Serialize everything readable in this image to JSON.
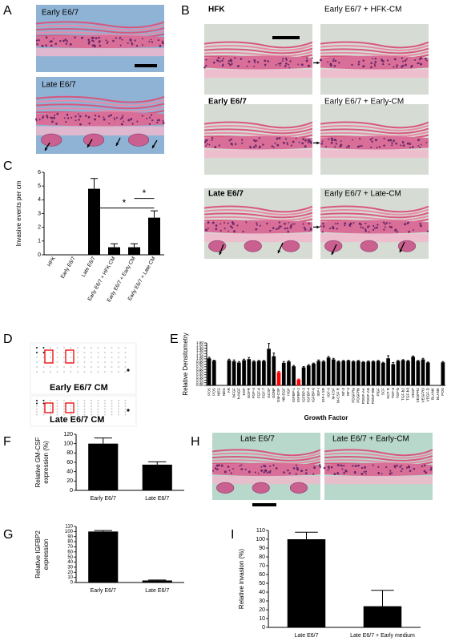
{
  "panels": [
    "A",
    "B",
    "C",
    "D",
    "E",
    "F",
    "G",
    "H",
    "I"
  ],
  "images": {
    "A": [
      "Early E6/7",
      "Late E6/7"
    ],
    "B": [
      "HFK",
      "Early E6/7 + HFK-CM",
      "Early E6/7",
      "Early E6/7 + Early-CM",
      "Late E6/7",
      "Early E6/7 + Late-CM"
    ],
    "H": [
      "Late E6/7",
      "Late E6/7 + Early-CM"
    ]
  },
  "blots": [
    "Early E6/7 CM",
    "Late E6/7 CM"
  ],
  "chart_data": [
    {
      "type": "bar",
      "y_label": "Invasive events per cm",
      "categories": [
        "HFK",
        "Early E6/7",
        "Late E6/7",
        "Early E6/7 + HFK CM",
        "Early E6/7 + Early CM",
        "Early E6/7 + Late CM"
      ],
      "values": [
        0,
        0,
        4.8,
        0.55,
        0.55,
        2.7
      ],
      "errors": [
        0,
        0,
        0.75,
        0.25,
        0.25,
        0.5
      ],
      "color": "#000000",
      "ylim": [
        0,
        6
      ],
      "yticks": [
        0,
        1,
        2,
        3,
        4,
        5,
        6
      ],
      "annotations": [
        "*",
        "*"
      ]
    },
    {
      "type": "bar",
      "y_label": "Relative Densitometry",
      "x_label": "Growth Factor",
      "categories": [
        "POS",
        "POS",
        "NEG",
        "NEG",
        "AR",
        "bFGF",
        "b-NGF",
        "EGF",
        "EGFR",
        "FGF-4",
        "FGF-6",
        "FGF-7",
        "GCSF",
        "GDNF",
        "GM-CSF",
        "HB-EGF",
        "HGF",
        "IGFBP-1",
        "IGFBP-2",
        "IGFBP-3",
        "IGFBP-4",
        "IGFBP-6",
        "IGF-I",
        "IGF-I SR",
        "IGF-II",
        "M-CSF",
        "M-CSF R",
        "NT-3",
        "NT-4",
        "PDGFRa",
        "PDGFRb",
        "PDGF-AA",
        "PDGF-AB",
        "PDGF-BB",
        "PlGF",
        "SCF",
        "SCF R",
        "TGF-a",
        "TGF-b",
        "TGF-b2",
        "TGF-b3",
        "VEGF",
        "VEGFR2",
        "VEGFR3",
        "VEGF-D",
        "BLANK",
        "BLANK",
        "POS"
      ],
      "values": [
        1.02,
        0.93,
        0,
        0,
        0.95,
        0.91,
        0.86,
        0.95,
        0.99,
        0.9,
        0.92,
        0.92,
        1.38,
        1.1,
        0.5,
        0.85,
        0.9,
        0.72,
        0.22,
        0.68,
        0.75,
        0.82,
        0.92,
        0.9,
        1.05,
        0.98,
        0.9,
        0.92,
        0.93,
        0.9,
        0.92,
        0.88,
        0.9,
        0.9,
        0.92,
        0.85,
        1.02,
        0.8,
        0.92,
        0.95,
        0.92,
        1.08,
        0.92,
        0.98,
        0.86,
        0,
        0,
        0.87
      ],
      "errors": [
        0.04,
        0.02,
        0,
        0,
        0.04,
        0.05,
        0.04,
        0.04,
        0.06,
        0.03,
        0.02,
        0.02,
        0.2,
        0.12,
        0.03,
        0.05,
        0.03,
        0.03,
        0.02,
        0.03,
        0.03,
        0.02,
        0.04,
        0.03,
        0.04,
        0.04,
        0.02,
        0.02,
        0.02,
        0.02,
        0.02,
        0.02,
        0.02,
        0.02,
        0.02,
        0.02,
        0.1,
        0.06,
        0.02,
        0.02,
        0.02,
        0.03,
        0.02,
        0.04,
        0.02,
        0,
        0,
        0.03
      ],
      "colors": [
        "#000000",
        "#000000",
        "#000000",
        "#000000",
        "#000000",
        "#000000",
        "#000000",
        "#000000",
        "#000000",
        "#000000",
        "#000000",
        "#000000",
        "#000000",
        "#000000",
        "#ff0000",
        "#000000",
        "#000000",
        "#000000",
        "#ff0000",
        "#000000",
        "#000000",
        "#000000",
        "#000000",
        "#000000",
        "#000000",
        "#000000",
        "#000000",
        "#000000",
        "#000000",
        "#000000",
        "#000000",
        "#000000",
        "#000000",
        "#000000",
        "#000000",
        "#000000",
        "#000000",
        "#000000",
        "#000000",
        "#000000",
        "#000000",
        "#000000",
        "#000000",
        "#000000",
        "#000000",
        "#000000",
        "#000000",
        "#000000"
      ],
      "ylim": [
        0,
        1.6
      ],
      "yticks": [
        {
          "value": 0,
          "label": "0.00"
        },
        {
          "value": 0.1,
          "label": "0.10"
        },
        {
          "value": 0.2,
          "label": "0.20"
        },
        {
          "value": 0.3,
          "label": "0.30"
        },
        {
          "value": 0.4,
          "label": "0.40"
        },
        {
          "value": 0.5,
          "label": "0.50"
        },
        {
          "value": 0.6,
          "label": "0.60"
        },
        {
          "value": 0.7,
          "label": "0.70"
        },
        {
          "value": 0.8,
          "label": "0.80"
        },
        {
          "value": 0.9,
          "label": "0.90"
        },
        {
          "value": 1,
          "label": "1.00"
        },
        {
          "value": 1.1,
          "label": "1.10"
        },
        {
          "value": 1.2,
          "label": "1.20"
        },
        {
          "value": 1.3,
          "label": "1.30"
        },
        {
          "value": 1.4,
          "label": "1.40"
        },
        {
          "value": 1.5,
          "label": "1.50"
        },
        {
          "value": 1.6,
          "label": "1.60"
        }
      ]
    },
    {
      "type": "bar",
      "y_label": [
        "Relative GM-CSF",
        "expression (%)"
      ],
      "categories": [
        "Early E6/7",
        "Late E6/7"
      ],
      "values": [
        100,
        55
      ],
      "errors": [
        12,
        6
      ],
      "color": "#000000",
      "ylim": [
        0,
        120
      ],
      "yticks": [
        0,
        20,
        40,
        60,
        80,
        100,
        120
      ]
    },
    {
      "type": "bar",
      "y_label": [
        "Relative IGFBP2",
        "expression"
      ],
      "categories": [
        "Early E6/7",
        "Late E6/7"
      ],
      "values": [
        100,
        4
      ],
      "errors": [
        2,
        1
      ],
      "color": "#000000",
      "ylim": [
        0,
        110
      ],
      "yticks": [
        0,
        10,
        20,
        30,
        40,
        50,
        60,
        70,
        80,
        90,
        100,
        110
      ]
    },
    {
      "type": "bar",
      "y_label": "Relative invasion (%)",
      "categories": [
        "Late E6/7",
        "Late E6/7 + Early medium"
      ],
      "values": [
        100,
        24
      ],
      "errors": [
        8,
        18
      ],
      "color": "#000000",
      "ylim": [
        0,
        110
      ],
      "yticks": [
        0,
        10,
        20,
        30,
        40,
        50,
        60,
        70,
        80,
        90,
        100,
        110
      ]
    }
  ]
}
